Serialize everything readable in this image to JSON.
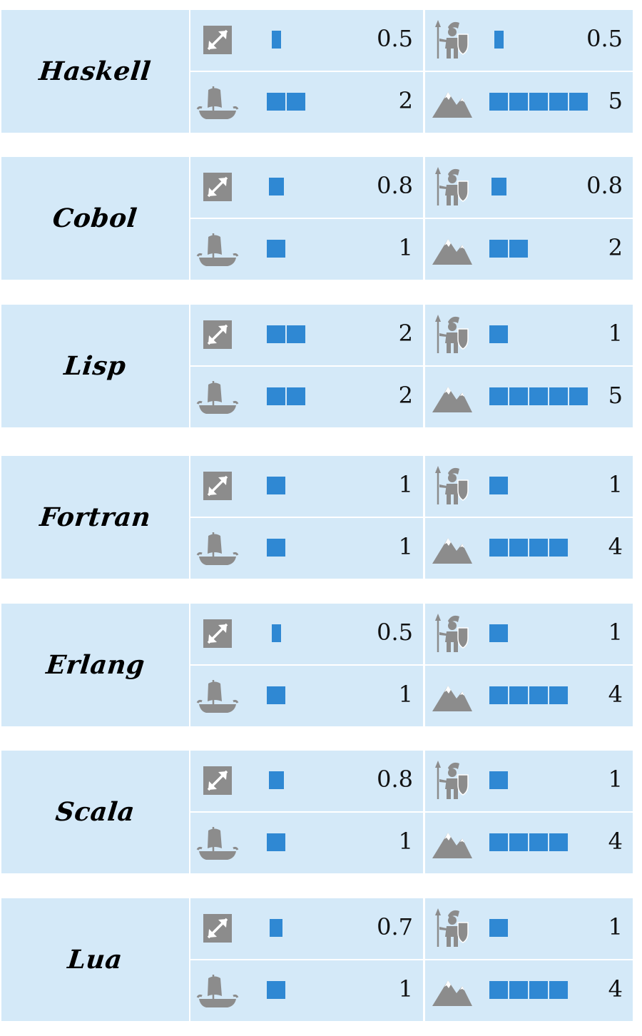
{
  "colors": {
    "cell_background": "#d4e9f8",
    "bar": "#2f88d3",
    "icon": "#8c8c8c",
    "text": "#111111"
  },
  "icons": {
    "range": "diagonal-arrow-icon",
    "attack": "soldier-icon",
    "ship": "ship-icon",
    "terrain": "mountain-icon"
  },
  "chart_data": {
    "type": "table",
    "stat_columns": [
      "range",
      "attack",
      "ship",
      "terrain"
    ],
    "rows": [
      {
        "name": "Haskell",
        "range": "0.5",
        "attack": "0.5",
        "ship": "2",
        "terrain": "5"
      },
      {
        "name": "Cobol",
        "range": "0.8",
        "attack": "0.8",
        "ship": "1",
        "terrain": "2"
      },
      {
        "name": "Lisp",
        "range": "2",
        "attack": "1",
        "ship": "2",
        "terrain": "5"
      },
      {
        "name": "Fortran",
        "range": "1",
        "attack": "1",
        "ship": "1",
        "terrain": "4"
      },
      {
        "name": "Erlang",
        "range": "0.5",
        "attack": "1",
        "ship": "1",
        "terrain": "4"
      },
      {
        "name": "Scala",
        "range": "0.8",
        "attack": "1",
        "ship": "1",
        "terrain": "4"
      },
      {
        "name": "Lua",
        "range": "0.7",
        "attack": "1",
        "ship": "1",
        "terrain": "4"
      }
    ]
  }
}
